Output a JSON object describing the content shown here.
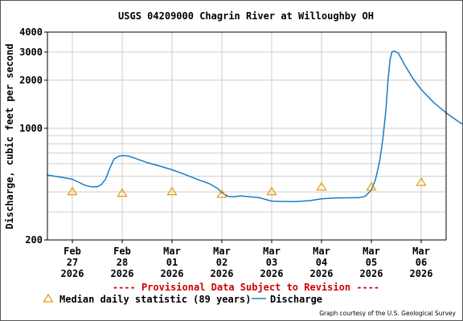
{
  "chart_data": {
    "type": "line",
    "title": "USGS 04209000 Chagrin River at Willoughby OH",
    "ylabel": "Discharge, cubic feet per second",
    "xlabel": "",
    "yscale": "log",
    "ylim": [
      200,
      4000
    ],
    "xlim": [
      "2026-02-26 12:00",
      "2026-03-06 12:00"
    ],
    "grid": true,
    "y_ticks": [
      {
        "value": 200,
        "label": "200"
      },
      {
        "value": 1000,
        "label": "1000"
      },
      {
        "value": 2000,
        "label": "2000"
      },
      {
        "value": 3000,
        "label": "3000"
      },
      {
        "value": 4000,
        "label": "4000"
      }
    ],
    "x_ticks": [
      {
        "month": "Feb",
        "day": "27",
        "year": "2026"
      },
      {
        "month": "Feb",
        "day": "28",
        "year": "2026"
      },
      {
        "month": "Mar",
        "day": "01",
        "year": "2026"
      },
      {
        "month": "Mar",
        "day": "02",
        "year": "2026"
      },
      {
        "month": "Mar",
        "day": "03",
        "year": "2026"
      },
      {
        "month": "Mar",
        "day": "04",
        "year": "2026"
      },
      {
        "month": "Mar",
        "day": "05",
        "year": "2026"
      },
      {
        "month": "Mar",
        "day": "06",
        "year": "2026"
      }
    ],
    "series": [
      {
        "name": "Discharge",
        "kind": "line",
        "color": "#1a7bc7",
        "points": [
          [
            "2026-02-26 12:00",
            510
          ],
          [
            "2026-02-26 18:00",
            495
          ],
          [
            "2026-02-27 00:00",
            480
          ],
          [
            "2026-02-27 03:00",
            460
          ],
          [
            "2026-02-27 06:00",
            440
          ],
          [
            "2026-02-27 09:00",
            430
          ],
          [
            "2026-02-27 12:00",
            430
          ],
          [
            "2026-02-27 14:00",
            445
          ],
          [
            "2026-02-27 16:00",
            480
          ],
          [
            "2026-02-27 18:00",
            560
          ],
          [
            "2026-02-27 20:00",
            640
          ],
          [
            "2026-02-27 22:00",
            665
          ],
          [
            "2026-02-28 00:00",
            675
          ],
          [
            "2026-02-28 03:00",
            670
          ],
          [
            "2026-02-28 06:00",
            650
          ],
          [
            "2026-02-28 12:00",
            610
          ],
          [
            "2026-02-28 18:00",
            580
          ],
          [
            "2026-03-01 00:00",
            550
          ],
          [
            "2026-03-01 06:00",
            515
          ],
          [
            "2026-03-01 12:00",
            480
          ],
          [
            "2026-03-01 18:00",
            450
          ],
          [
            "2026-03-01 22:00",
            420
          ],
          [
            "2026-03-02 00:00",
            395
          ],
          [
            "2026-03-02 03:00",
            375
          ],
          [
            "2026-03-02 06:00",
            372
          ],
          [
            "2026-03-02 09:00",
            378
          ],
          [
            "2026-03-02 12:00",
            374
          ],
          [
            "2026-03-02 18:00",
            368
          ],
          [
            "2026-03-03 00:00",
            350
          ],
          [
            "2026-03-03 06:00",
            348
          ],
          [
            "2026-03-03 12:00",
            348
          ],
          [
            "2026-03-03 18:00",
            352
          ],
          [
            "2026-03-04 00:00",
            362
          ],
          [
            "2026-03-04 06:00",
            366
          ],
          [
            "2026-03-04 12:00",
            367
          ],
          [
            "2026-03-04 18:00",
            368
          ],
          [
            "2026-03-04 21:00",
            375
          ],
          [
            "2026-03-05 00:00",
            410
          ],
          [
            "2026-03-05 02:00",
            480
          ],
          [
            "2026-03-05 04:00",
            620
          ],
          [
            "2026-03-05 05:30",
            850
          ],
          [
            "2026-03-05 07:00",
            1300
          ],
          [
            "2026-03-05 08:00",
            2000
          ],
          [
            "2026-03-05 09:00",
            2700
          ],
          [
            "2026-03-05 10:00",
            3020
          ],
          [
            "2026-03-05 11:00",
            3040
          ],
          [
            "2026-03-05 13:00",
            2950
          ],
          [
            "2026-03-05 16:00",
            2500
          ],
          [
            "2026-03-05 20:00",
            2050
          ],
          [
            "2026-03-06 00:00",
            1750
          ],
          [
            "2026-03-06 06:00",
            1450
          ],
          [
            "2026-03-06 12:00",
            1250
          ],
          [
            "2026-03-06 18:00",
            1100
          ],
          [
            "2026-03-06 23:00",
            1000
          ]
        ]
      },
      {
        "name": "Median daily statistic (89 years)",
        "kind": "marker",
        "color": "#e69a00",
        "points": [
          [
            "2026-02-27 00:00",
            402
          ],
          [
            "2026-02-28 00:00",
            393
          ],
          [
            "2026-03-01 00:00",
            402
          ],
          [
            "2026-03-02 00:00",
            387
          ],
          [
            "2026-03-03 00:00",
            402
          ],
          [
            "2026-03-04 00:00",
            430
          ],
          [
            "2026-03-05 00:00",
            430
          ],
          [
            "2026-03-06 00:00",
            460
          ]
        ]
      }
    ]
  },
  "notice": "---- Provisional Data Subject to Revision ----",
  "legend": {
    "median_label": "Median daily statistic (89 years)",
    "discharge_label": "Discharge"
  },
  "credit": "Graph courtesy of the U.S. Geological Survey",
  "colors": {
    "notice": "#d00000",
    "discharge": "#1a7bc7",
    "median": "#e69a00",
    "grid": "#cccccc"
  }
}
